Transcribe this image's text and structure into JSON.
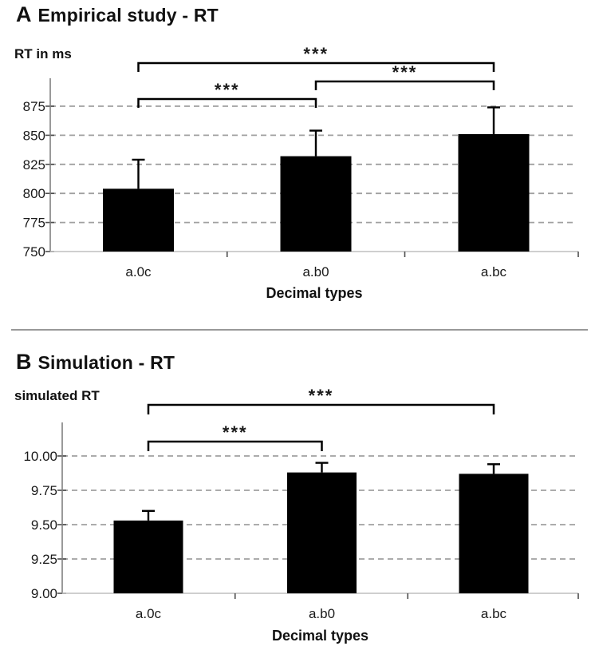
{
  "page": {
    "background": "#ffffff",
    "divider_color": "#999999"
  },
  "chart_data": [
    {
      "type": "bar",
      "panel_label": "A",
      "title": "Empirical study - RT",
      "ylabel": "RT in ms",
      "xlabel": "Decimal types",
      "categories": [
        "a.0c",
        "a.b0",
        "a.bc"
      ],
      "values": [
        804,
        832,
        851
      ],
      "error_plus": [
        25,
        22,
        23
      ],
      "y_ticks": [
        750,
        775,
        800,
        825,
        850,
        875
      ],
      "y_tick_labels": [
        "750",
        "775",
        "800",
        "825",
        "850",
        "875"
      ],
      "ylim": [
        750,
        875
      ],
      "grid": "horizontal-dashed",
      "legend": "none",
      "bar_color": "#000000",
      "significance": [
        {
          "pair": [
            0,
            1
          ],
          "label": "***"
        },
        {
          "pair": [
            1,
            2
          ],
          "label": "***"
        },
        {
          "pair": [
            0,
            2
          ],
          "label": "***"
        }
      ]
    },
    {
      "type": "bar",
      "panel_label": "B",
      "title": "Simulation - RT",
      "ylabel": "simulated RT",
      "xlabel": "Decimal types",
      "categories": [
        "a.0c",
        "a.b0",
        "a.bc"
      ],
      "values": [
        9.53,
        9.88,
        9.87
      ],
      "error_plus": [
        0.07,
        0.07,
        0.07
      ],
      "y_ticks": [
        9.0,
        9.25,
        9.5,
        9.75,
        10.0
      ],
      "y_tick_labels": [
        "9.00",
        "9.25",
        "9.50",
        "9.75",
        "10.00"
      ],
      "ylim": [
        9.0,
        10.0
      ],
      "grid": "horizontal-dashed",
      "legend": "none",
      "bar_color": "#000000",
      "significance": [
        {
          "pair": [
            0,
            1
          ],
          "label": "***"
        },
        {
          "pair": [
            0,
            2
          ],
          "label": "***"
        }
      ]
    }
  ],
  "style_colors": {
    "bar": "#000000",
    "gridline": "#a0a0a0",
    "y_axis_line": "#808080",
    "x_axis_line": "#bfbfbf",
    "tick_mark": "#4d4d4d",
    "bracket": "#000000"
  }
}
